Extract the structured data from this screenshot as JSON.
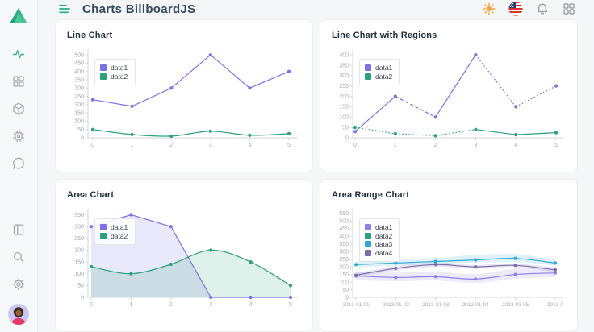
{
  "app": {
    "accent_green": "#27ae85",
    "page_bg": "#f5f6f7"
  },
  "header": {
    "title": "Charts BillboardJS",
    "icons": [
      "menu-hamburger-icon",
      "theme-sun-icon",
      "language-us-flag-icon",
      "notifications-bell-icon",
      "apps-grid-icon"
    ]
  },
  "sidebar": {
    "top_items": [
      {
        "icon": "activity-pulse-icon",
        "active": true
      },
      {
        "icon": "dashboard-grid-icon",
        "active": false
      },
      {
        "icon": "package-cube-icon",
        "active": false
      },
      {
        "icon": "cpu-chip-icon",
        "active": false
      },
      {
        "icon": "chat-bubble-icon",
        "active": false
      }
    ],
    "bottom_items": [
      {
        "icon": "layout-panel-icon",
        "active": false
      },
      {
        "icon": "search-icon",
        "active": false
      },
      {
        "icon": "settings-gear-icon",
        "active": false
      },
      {
        "icon": "user-avatar",
        "active": false
      }
    ]
  },
  "chart_data": [
    {
      "type": "line",
      "title": "Line Chart",
      "x_tick_labels": [
        "0",
        "1",
        "2",
        "3",
        "4",
        "5"
      ],
      "y_ticks": [
        0,
        50,
        100,
        150,
        200,
        250,
        300,
        350,
        400,
        450,
        500
      ],
      "ylim": [
        0,
        515
      ],
      "x_inset": 6,
      "legend_position": "inset-top-left",
      "grid": false,
      "series": [
        {
          "name": "data1",
          "color": "#7b70e4",
          "values": [
            230,
            190,
            300,
            500,
            300,
            400
          ],
          "spline": false
        },
        {
          "name": "data2",
          "color": "#2aa179",
          "values": [
            50,
            20,
            10,
            40,
            15,
            25
          ],
          "spline": true
        }
      ]
    },
    {
      "type": "line",
      "title": "Line Chart with Regions",
      "x_tick_labels": [
        "0",
        "1",
        "2",
        "3",
        "4",
        "5"
      ],
      "y_ticks": [
        0,
        50,
        100,
        150,
        200,
        250,
        300,
        350,
        400
      ],
      "ylim": [
        0,
        412
      ],
      "x_inset": 3,
      "legend_position": "inset-top-left",
      "grid": false,
      "series": [
        {
          "name": "data1",
          "color": "#7b70e4",
          "values": [
            30,
            200,
            100,
            400,
            150,
            250
          ],
          "segment_styles": [
            "solid",
            "dashed",
            "solid",
            "dotted",
            "dotted"
          ]
        },
        {
          "name": "data2",
          "color": "#2aa179",
          "values": [
            50,
            20,
            10,
            40,
            15,
            25
          ],
          "segment_styles": [
            "dotted",
            "dotted",
            "dotted",
            "solid",
            "solid"
          ]
        }
      ]
    },
    {
      "type": "area",
      "title": "Area Chart",
      "x_tick_labels": [
        "0",
        "1",
        "2",
        "3",
        "4",
        "5"
      ],
      "y_ticks": [
        0,
        50,
        100,
        150,
        200,
        250,
        300,
        350
      ],
      "ylim": [
        0,
        362
      ],
      "x_inset": 4,
      "legend_position": "inset-top-left",
      "grid": false,
      "series": [
        {
          "name": "data1",
          "color": "#7b70e4",
          "values": [
            300,
            350,
            300,
            0,
            0,
            0
          ],
          "area": true,
          "spline": false
        },
        {
          "name": "data2",
          "color": "#2aa179",
          "values": [
            130,
            100,
            140,
            200,
            150,
            50
          ],
          "area": true,
          "spline": true
        }
      ]
    },
    {
      "type": "area",
      "title": "Area Range Chart",
      "x_tick_labels": [
        "2013-01-01",
        "2013-01-02",
        "2013-01-03",
        "2013-01-04",
        "2013-01-05",
        "2013-0"
      ],
      "y_ticks": [
        0,
        50,
        100,
        150,
        200,
        250,
        300,
        350,
        400,
        450,
        500,
        550
      ],
      "ylim": [
        0,
        560
      ],
      "x_inset": 4,
      "x_label_size": 6.5,
      "legend_position": "inset-top-left",
      "grid": false,
      "series": [
        {
          "name": "data1",
          "color": "#8b80e8",
          "values": [
            140,
            130,
            135,
            120,
            150,
            160
          ],
          "spline": true,
          "band_high": [
            168,
            162,
            168,
            152,
            188,
            188
          ],
          "band_low": [
            112,
            105,
            110,
            95,
            122,
            132
          ]
        },
        {
          "name": "data2",
          "color": "#2aa179",
          "values": []
        },
        {
          "name": "data3",
          "color": "#2fa8d8",
          "values": [
            215,
            225,
            235,
            245,
            255,
            225
          ],
          "spline": true,
          "band_high": [
            235,
            245,
            258,
            278,
            283,
            248
          ],
          "band_low": [
            200,
            208,
            218,
            228,
            232,
            208
          ]
        },
        {
          "name": "data4",
          "color": "#7e6bae",
          "values": [
            145,
            190,
            215,
            200,
            210,
            180
          ],
          "spline": true,
          "band_high": [
            160,
            205,
            228,
            212,
            222,
            195
          ],
          "band_low": [
            132,
            175,
            200,
            188,
            198,
            165
          ]
        }
      ]
    }
  ]
}
